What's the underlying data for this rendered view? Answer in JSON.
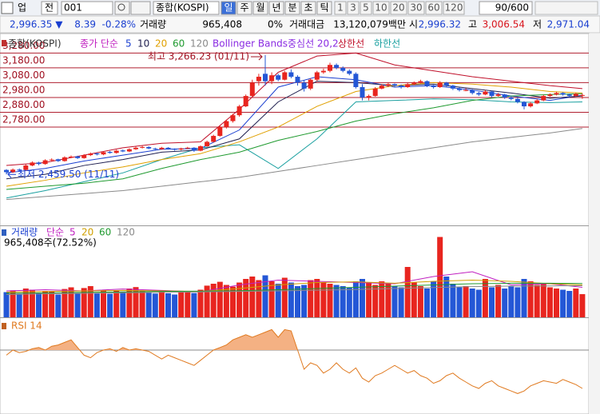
{
  "toolbar": {
    "market": "업",
    "all": "전",
    "code": "001",
    "name": "종합(KOSPI)",
    "periods": [
      "일",
      "주",
      "월",
      "년",
      "분",
      "초",
      "틱"
    ],
    "selected_period": 0,
    "intervals": [
      "1",
      "3",
      "5",
      "10",
      "20",
      "30",
      "60",
      "120"
    ],
    "count": "90/600"
  },
  "info_bar": {
    "price": "2,996.35 ▼",
    "change": "8.39",
    "change_pct": "-0.28%",
    "volume_label": "거래량",
    "volume": "965,408",
    "volume_pct": "0%",
    "amount_label": "거래대금",
    "amount": "13,120,079백만",
    "open_label": "시",
    "open": "2,996.32",
    "high_label": "고",
    "high": "3,006.54",
    "low_label": "저",
    "low": "2,971.04"
  },
  "chart_data": [
    {
      "type": "candlestick",
      "title": "종합(KOSPI)",
      "legend_label": "종가 단순",
      "up_color": "#e8251f",
      "down_color": "#2457d6",
      "ylim": [
        2115,
        3412
      ],
      "yticks": [
        {
          "value": 2780,
          "label": "2,780.00"
        },
        {
          "value": 2880,
          "label": "2,880.00"
        },
        {
          "value": 2980,
          "label": "2,980.00"
        },
        {
          "value": 3080,
          "label": "3,080.00"
        },
        {
          "value": 3180,
          "label": "3,180.00"
        },
        {
          "value": 3280,
          "label": "3,280.00"
        }
      ],
      "ohlc": [
        [
          2490,
          2495,
          2459.5,
          2475
        ],
        [
          2475,
          2500,
          2470,
          2492
        ],
        [
          2492,
          2500,
          2480,
          2488
        ],
        [
          2490,
          2528,
          2486,
          2520
        ],
        [
          2520,
          2548,
          2515,
          2540
        ],
        [
          2540,
          2545,
          2522,
          2530
        ],
        [
          2530,
          2562,
          2525,
          2555
        ],
        [
          2555,
          2568,
          2550,
          2560
        ],
        [
          2562,
          2566,
          2544,
          2550
        ],
        [
          2550,
          2582,
          2546,
          2575
        ],
        [
          2575,
          2588,
          2570,
          2580
        ],
        [
          2582,
          2586,
          2564,
          2570
        ],
        [
          2570,
          2596,
          2566,
          2590
        ],
        [
          2590,
          2608,
          2584,
          2600
        ],
        [
          2602,
          2606,
          2588,
          2595
        ],
        [
          2595,
          2616,
          2590,
          2610
        ],
        [
          2612,
          2618,
          2600,
          2605
        ],
        [
          2605,
          2626,
          2600,
          2620
        ],
        [
          2622,
          2628,
          2610,
          2615
        ],
        [
          2615,
          2636,
          2610,
          2630
        ],
        [
          2630,
          2648,
          2625,
          2640
        ],
        [
          2640,
          2652,
          2635,
          2645
        ],
        [
          2645,
          2650,
          2630,
          2635
        ],
        [
          2635,
          2640,
          2624,
          2630
        ],
        [
          2630,
          2646,
          2626,
          2640
        ],
        [
          2640,
          2644,
          2628,
          2632
        ],
        [
          2632,
          2636,
          2620,
          2628
        ],
        [
          2628,
          2640,
          2622,
          2635
        ],
        [
          2635,
          2646,
          2630,
          2640
        ],
        [
          2640,
          2644,
          2612,
          2620
        ],
        [
          2620,
          2656,
          2616,
          2650
        ],
        [
          2650,
          2688,
          2646,
          2680
        ],
        [
          2680,
          2728,
          2676,
          2720
        ],
        [
          2720,
          2790,
          2715,
          2780
        ],
        [
          2780,
          2830,
          2770,
          2820
        ],
        [
          2820,
          2870,
          2810,
          2860
        ],
        [
          2860,
          2930,
          2850,
          2920
        ],
        [
          2920,
          3000,
          2915,
          2990
        ],
        [
          2990,
          3100,
          2985,
          3080
        ],
        [
          3090,
          3140,
          3060,
          3120
        ],
        [
          3140,
          3266.23,
          3060,
          3090
        ],
        [
          3090,
          3150,
          3070,
          3130
        ],
        [
          3130,
          3140,
          3090,
          3100
        ],
        [
          3100,
          3160,
          3095,
          3150
        ],
        [
          3150,
          3170,
          3110,
          3120
        ],
        [
          3120,
          3130,
          3060,
          3080
        ],
        [
          3080,
          3095,
          3020,
          3040
        ],
        [
          3040,
          3110,
          3030,
          3100
        ],
        [
          3100,
          3160,
          3090,
          3150
        ],
        [
          3150,
          3175,
          3140,
          3160
        ],
        [
          3160,
          3215,
          3150,
          3200
        ],
        [
          3200,
          3210,
          3170,
          3180
        ],
        [
          3180,
          3190,
          3150,
          3160
        ],
        [
          3160,
          3170,
          3130,
          3140
        ],
        [
          3140,
          3150,
          3040,
          3050
        ],
        [
          3050,
          3070,
          2960,
          2980
        ],
        [
          2980,
          3000,
          2960,
          2990
        ],
        [
          2990,
          3050,
          2985,
          3040
        ],
        [
          3040,
          3070,
          3035,
          3060
        ],
        [
          3060,
          3080,
          3050,
          3070
        ],
        [
          3070,
          3075,
          3050,
          3060
        ],
        [
          3060,
          3068,
          3040,
          3050
        ],
        [
          3050,
          3078,
          3045,
          3070
        ],
        [
          3070,
          3088,
          3062,
          3080
        ],
        [
          3080,
          3100,
          3075,
          3090
        ],
        [
          3090,
          3095,
          3050,
          3060
        ],
        [
          3060,
          3065,
          3040,
          3050
        ],
        [
          3050,
          3090,
          3045,
          3080
        ],
        [
          3080,
          3085,
          3050,
          3060
        ],
        [
          3060,
          3066,
          3030,
          3040
        ],
        [
          3040,
          3048,
          3020,
          3030
        ],
        [
          3030,
          3042,
          3022,
          3030
        ],
        [
          3030,
          3035,
          3000,
          3010
        ],
        [
          3010,
          3018,
          2990,
          3000
        ],
        [
          3000,
          3030,
          2995,
          3020
        ],
        [
          3020,
          3025,
          2980,
          2990
        ],
        [
          2990,
          3010,
          2985,
          3000
        ],
        [
          3000,
          3005,
          2970,
          2980
        ],
        [
          2980,
          2990,
          2960,
          2970
        ],
        [
          2970,
          2978,
          2940,
          2950
        ],
        [
          2950,
          2955,
          2900,
          2920
        ],
        [
          2920,
          2950,
          2912,
          2940
        ],
        [
          2940,
          2968,
          2935,
          2960
        ],
        [
          2960,
          2998,
          2955,
          2990
        ],
        [
          2990,
          3008,
          2985,
          3000
        ],
        [
          3000,
          3018,
          2994,
          3010
        ],
        [
          3010,
          3015,
          2992,
          3000
        ],
        [
          3000,
          3006,
          2982,
          2990
        ],
        [
          2990,
          3010,
          2985,
          3004.74
        ],
        [
          2996.32,
          3006.54,
          2971.04,
          2996.35
        ]
      ],
      "line_x": [
        0,
        6,
        12,
        18,
        24,
        30,
        36,
        42,
        48,
        54,
        60,
        66,
        72,
        78,
        84,
        89
      ],
      "series": [
        {
          "name": "5",
          "color": "#1a3fd0",
          "values": [
            2470,
            2500,
            2550,
            2590,
            2630,
            2635,
            2760,
            3050,
            3120,
            3100,
            3050,
            3060,
            3030,
            2990,
            2960,
            2995
          ]
        },
        {
          "name": "10",
          "color": "#202050",
          "values": [
            2430,
            2460,
            2520,
            2560,
            2610,
            2625,
            2700,
            2950,
            3090,
            3080,
            3060,
            3070,
            3040,
            3010,
            2975,
            2990
          ]
        },
        {
          "name": "20",
          "color": "#e0a000",
          "values": [
            2380,
            2420,
            2470,
            2510,
            2560,
            2600,
            2680,
            2780,
            2920,
            3020,
            3060,
            3080,
            3070,
            3050,
            3020,
            3010
          ]
        },
        {
          "name": "60",
          "color": "#1f9a2f",
          "values": [
            2358,
            2380,
            2400,
            2430,
            2500,
            2560,
            2610,
            2690,
            2750,
            2820,
            2870,
            2910,
            2960,
            2990,
            3000,
            3005
          ]
        },
        {
          "name": "120",
          "color": "#8a8a8a",
          "values": [
            2290,
            2310,
            2330,
            2350,
            2380,
            2410,
            2440,
            2480,
            2520,
            2560,
            2600,
            2640,
            2680,
            2710,
            2740,
            2770
          ]
        }
      ],
      "bands_title": "Bollinger Bands중심선 20,2",
      "bands_color": "#8a2be2",
      "bands": [
        {
          "name": "상한선",
          "color": "#c0102a",
          "values": [
            2520,
            2540,
            2590,
            2640,
            2670,
            2680,
            2900,
            3150,
            3260,
            3280,
            3200,
            3160,
            3120,
            3090,
            3060,
            3040
          ]
        },
        {
          "name": "하한선",
          "color": "#1aa0a0",
          "values": [
            2300,
            2350,
            2410,
            2470,
            2560,
            2640,
            2660,
            2500,
            2700,
            2950,
            2960,
            2970,
            2965,
            2950,
            2945,
            2950
          ]
        }
      ],
      "annotations": {
        "high": "최고 3,266.23 (01/11)",
        "low": "최저 2,459.50 (11/11)"
      }
    },
    {
      "type": "bar",
      "title": "거래량",
      "legend_label": "단순",
      "value_label": "965,408주(72.52%)",
      "ylim": [
        0,
        3800000
      ],
      "values": [
        1050000,
        1120000,
        980000,
        1200000,
        1150000,
        1000000,
        1100000,
        1080000,
        950000,
        1180000,
        1250000,
        1010000,
        1220000,
        1300000,
        1000000,
        1150000,
        980000,
        1120000,
        1050000,
        1200000,
        1260000,
        1100000,
        1020000,
        990000,
        1080000,
        1000000,
        950000,
        1050000,
        1090000,
        1010000,
        1150000,
        1320000,
        1400000,
        1480000,
        1350000,
        1280000,
        1450000,
        1600000,
        1700000,
        1550000,
        1750000,
        1500000,
        1400000,
        1650000,
        1450000,
        1300000,
        1350000,
        1550000,
        1600000,
        1450000,
        1400000,
        1350000,
        1300000,
        1250000,
        1500000,
        1600000,
        1450000,
        1350000,
        1500000,
        1400000,
        1300000,
        1250000,
        2100000,
        1450000,
        1300000,
        1200000,
        1500000,
        3350000,
        1700000,
        1400000,
        1250000,
        1300000,
        1200000,
        1150000,
        1600000,
        1250000,
        1350000,
        1200000,
        1300000,
        1250000,
        1600000,
        1500000,
        1350000,
        1400000,
        1250000,
        1200000,
        1150000,
        1100000,
        1200000,
        965408
      ],
      "series": [
        {
          "name": "5",
          "color": "#c020c0",
          "values": [
            1100000,
            1150000,
            1100000,
            1180000,
            1120000,
            1060000,
            1350000,
            1550000,
            1500000,
            1450000,
            1400000,
            1700000,
            1900000,
            1350000,
            1400000,
            1250000
          ]
        },
        {
          "name": "20",
          "color": "#d0a000",
          "values": [
            1050000,
            1080000,
            1100000,
            1120000,
            1100000,
            1080000,
            1200000,
            1350000,
            1450000,
            1480000,
            1420000,
            1500000,
            1550000,
            1500000,
            1400000,
            1350000
          ]
        },
        {
          "name": "60",
          "color": "#1f9a2f",
          "values": [
            1000000,
            1020000,
            1040000,
            1060000,
            1080000,
            1090000,
            1110000,
            1150000,
            1200000,
            1250000,
            1300000,
            1350000,
            1400000,
            1420000,
            1420000,
            1410000
          ]
        },
        {
          "name": "120",
          "color": "#8a8a8a",
          "values": [
            950000,
            980000,
            1000000,
            1020000,
            1040000,
            1060000,
            1080000,
            1100000,
            1130000,
            1160000,
            1200000,
            1240000,
            1280000,
            1300000,
            1310000,
            1320000
          ]
        }
      ]
    },
    {
      "type": "line",
      "title": "RSI 14",
      "color": "#e07a20",
      "fill": "#f4b183",
      "ylim": [
        20,
        95
      ],
      "overbought": 70,
      "values": [
        66,
        70,
        68,
        69,
        71,
        72,
        70,
        73,
        74,
        76,
        78,
        72,
        66,
        64,
        68,
        70,
        71,
        69,
        72,
        70,
        71,
        70,
        69,
        66,
        63,
        66,
        64,
        62,
        60,
        58,
        62,
        66,
        70,
        72,
        74,
        78,
        80,
        82,
        80,
        82,
        84,
        86,
        80,
        86,
        85,
        70,
        55,
        60,
        58,
        52,
        55,
        60,
        55,
        52,
        56,
        48,
        45,
        50,
        52,
        55,
        58,
        55,
        52,
        54,
        50,
        48,
        44,
        46,
        50,
        52,
        48,
        45,
        42,
        40,
        44,
        46,
        42,
        40,
        38,
        36,
        38,
        42,
        44,
        46,
        45,
        44,
        47,
        45,
        43,
        40
      ]
    }
  ]
}
